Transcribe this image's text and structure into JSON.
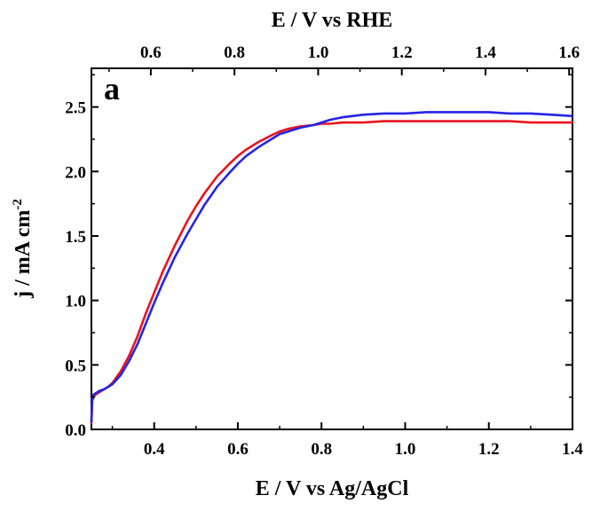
{
  "chart_data": {
    "type": "line",
    "panel_label": "a",
    "xlabel": "E / V vs Ag/AgCl",
    "x2label": "E / V vs RHE",
    "ylabel_main": "j / mA cm",
    "ylabel_sup": "-2",
    "xlim": [
      0.25,
      1.4
    ],
    "ylim": [
      0,
      2.8
    ],
    "x2lim": [
      0.458,
      1.608
    ],
    "xticks": [
      0.4,
      0.6,
      0.8,
      1.0,
      1.2,
      1.4
    ],
    "xtick_labels": [
      "0.4",
      "0.6",
      "0.8",
      "1.0",
      "1.2",
      "1.4"
    ],
    "x2ticks": [
      0.6,
      0.8,
      1.0,
      1.2,
      1.4,
      1.6
    ],
    "x2tick_labels": [
      "0.6",
      "0.8",
      "1.0",
      "1.2",
      "1.4",
      "1.6"
    ],
    "yticks": [
      0,
      0.5,
      1.0,
      1.5,
      2.0,
      2.5
    ],
    "ytick_labels": [
      "0.0",
      "0.5",
      "1.0",
      "1.5",
      "2.0",
      "2.5"
    ],
    "grid": false,
    "series": [
      {
        "color": "#e8141c",
        "x": [
          0.25,
          0.252,
          0.255,
          0.26,
          0.27,
          0.28,
          0.29,
          0.3,
          0.32,
          0.34,
          0.36,
          0.38,
          0.4,
          0.42,
          0.45,
          0.48,
          0.5,
          0.52,
          0.55,
          0.58,
          0.6,
          0.62,
          0.65,
          0.68,
          0.7,
          0.72,
          0.75,
          0.78,
          0.8,
          0.82,
          0.85,
          0.9,
          0.95,
          1.0,
          1.05,
          1.1,
          1.15,
          1.2,
          1.25,
          1.3,
          1.35,
          1.4
        ],
        "y": [
          0.05,
          0.22,
          0.25,
          0.27,
          0.29,
          0.31,
          0.33,
          0.36,
          0.45,
          0.57,
          0.72,
          0.9,
          1.06,
          1.22,
          1.43,
          1.62,
          1.73,
          1.83,
          1.96,
          2.06,
          2.12,
          2.17,
          2.23,
          2.28,
          2.31,
          2.33,
          2.35,
          2.36,
          2.37,
          2.37,
          2.38,
          2.38,
          2.39,
          2.39,
          2.39,
          2.39,
          2.39,
          2.39,
          2.39,
          2.38,
          2.38,
          2.38
        ]
      },
      {
        "color": "#2424e6",
        "x": [
          0.25,
          0.252,
          0.255,
          0.26,
          0.27,
          0.28,
          0.29,
          0.3,
          0.32,
          0.34,
          0.36,
          0.38,
          0.4,
          0.42,
          0.45,
          0.48,
          0.5,
          0.52,
          0.55,
          0.58,
          0.6,
          0.62,
          0.65,
          0.68,
          0.7,
          0.72,
          0.75,
          0.78,
          0.8,
          0.82,
          0.85,
          0.9,
          0.95,
          1.0,
          1.05,
          1.1,
          1.15,
          1.2,
          1.25,
          1.3,
          1.35,
          1.4
        ],
        "y": [
          0.06,
          0.25,
          0.27,
          0.28,
          0.3,
          0.31,
          0.33,
          0.35,
          0.42,
          0.53,
          0.66,
          0.82,
          0.98,
          1.13,
          1.34,
          1.52,
          1.63,
          1.74,
          1.88,
          1.99,
          2.06,
          2.12,
          2.19,
          2.25,
          2.29,
          2.31,
          2.34,
          2.36,
          2.38,
          2.4,
          2.42,
          2.44,
          2.45,
          2.45,
          2.46,
          2.46,
          2.46,
          2.46,
          2.45,
          2.45,
          2.44,
          2.43
        ]
      }
    ]
  }
}
